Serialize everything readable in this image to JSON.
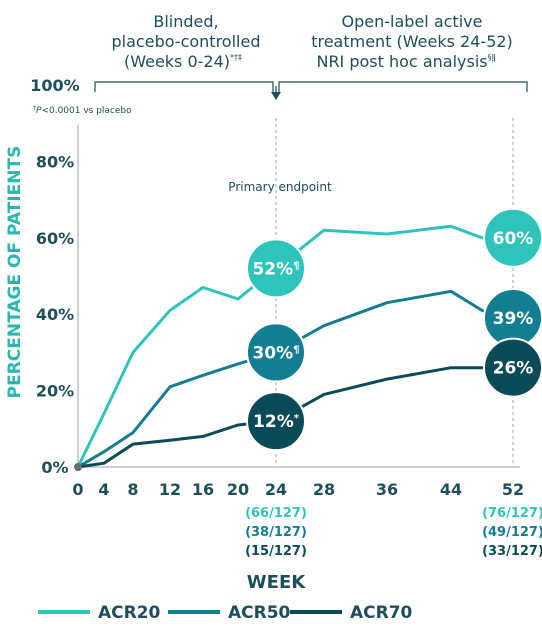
{
  "header": {
    "left_lines": [
      "Blinded,",
      "placebo-controlled",
      "(Weeks 0-24)"
    ],
    "left_sup": "*†‡",
    "right_lines": [
      "Open-label active",
      "treatment (Weeks 24-52)",
      "NRI post hoc analysis"
    ],
    "right_sup": "§ǁ"
  },
  "footnote_symbol": "†",
  "footnote_italic": "P",
  "footnote_rest": "<0.0001 vs placebo",
  "primary_endpoint_label": "Primary endpoint",
  "chart_data": {
    "type": "line",
    "ylabel": "PERCENTAGE OF PATIENTS",
    "xlabel": "WEEK",
    "ylim": [
      0,
      100
    ],
    "xlim": [
      0,
      52
    ],
    "yticks": [
      "0%",
      "20%",
      "40%",
      "60%",
      "80%",
      "100%"
    ],
    "xticks": [
      "0",
      "4",
      "8",
      "12",
      "16",
      "20",
      "24",
      "28",
      "36",
      "44",
      "52"
    ],
    "series": [
      {
        "name": "ACR20",
        "color": "#2ec4bc",
        "x": [
          0,
          4,
          8,
          12,
          16,
          20,
          24,
          28,
          36,
          44,
          48,
          52
        ],
        "y": [
          0,
          14,
          30,
          41,
          47,
          44,
          52,
          62,
          61,
          63,
          60,
          60
        ]
      },
      {
        "name": "ACR50",
        "color": "#137d91",
        "x": [
          0,
          4,
          8,
          12,
          16,
          20,
          24,
          28,
          36,
          44,
          48,
          52
        ],
        "y": [
          0,
          4,
          9,
          21,
          24,
          27,
          30,
          37,
          43,
          46,
          41,
          39
        ]
      },
      {
        "name": "ACR70",
        "color": "#0b4b58",
        "x": [
          0,
          4,
          8,
          12,
          16,
          20,
          24,
          28,
          36,
          44,
          48,
          52
        ],
        "y": [
          0,
          1,
          6,
          7,
          8,
          11,
          12,
          19,
          23,
          26,
          26,
          26
        ]
      }
    ],
    "bubbles": [
      {
        "series": "ACR20",
        "week": 24,
        "value": 52,
        "label": "52%",
        "sup": "¶"
      },
      {
        "series": "ACR50",
        "week": 24,
        "value": 30,
        "label": "30%",
        "sup": "¶"
      },
      {
        "series": "ACR70",
        "week": 24,
        "value": 12,
        "label": "12%",
        "sup": "*"
      },
      {
        "series": "ACR20",
        "week": 52,
        "value": 60,
        "label": "60%",
        "sup": ""
      },
      {
        "series": "ACR50",
        "week": 52,
        "value": 39,
        "label": "39%",
        "sup": ""
      },
      {
        "series": "ACR70",
        "week": 52,
        "value": 26,
        "label": "26%",
        "sup": ""
      }
    ],
    "n_labels": [
      {
        "week": 24,
        "values": [
          "(66/127)",
          "(38/127)",
          "(15/127)"
        ]
      },
      {
        "week": 52,
        "values": [
          "(76/127)",
          "(49/127)",
          "(33/127)"
        ]
      }
    ],
    "legend": [
      "ACR20",
      "ACR50",
      "ACR70"
    ],
    "legend_position": "bottom"
  }
}
